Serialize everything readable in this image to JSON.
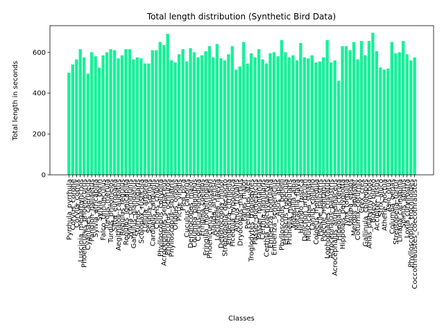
{
  "chart_data": {
    "type": "bar",
    "title": "Total length distribution (Synthetic Bird Data)",
    "x_label": "Classes",
    "y_label": "Total length in seconds",
    "color": "#19f09a",
    "categories": [
      "Pyrrhula_pyrrhula",
      "Corvus_corone",
      "Corvus_cornix",
      "Luscinia_megarhynchos",
      "Phoenicurus_phoenicurus",
      "Cyanistes_caeruleus",
      "Pandion_haliaetus",
      "Sylvia_atricapilla",
      "Sylvia_borin",
      "Falco_tinnunculus",
      "Turdus_merula",
      "Turdus_philomelos",
      "Sitta_europaea",
      "Aegithalos_caudatus",
      "Regulus_regulus",
      "Regulus_ignicapilla",
      "Sylvia_communis",
      "Garrulus_glandarius",
      "Sturnus_vulgaris",
      "Scolopax_rusticola",
      "Lullula_arborea",
      "Serinus_serinus",
      "Carduelis_carduelis",
      "Chloris_chloris",
      "Phylloscopus_collybita",
      "Acrocephalus_scirpaceus",
      "Phoenicurus_ochruros",
      "Phylloscopus_sibilatrix",
      "Oriolus_oriolus",
      "Picus_viridis",
      "Pica_pica",
      "Cuculus_canorus",
      "Dendrocopos_major",
      "Columba_palumbus",
      "Corvus_monedula",
      "Fringilla_coelebs",
      "Fringilla_montifringilla",
      "Phoenicurus_moussieri",
      "Alauda_arvensis",
      "Locustella_naevia",
      "Dendrocopos_minor",
      "Streptopelia_decaocto",
      "Emberiza_citrinella",
      "Ficedula_hypoleuca",
      "Anthus_trivialis",
      "Dryocopus_martius",
      "Parus_major",
      "Periparus_ater",
      "Troglodytes_troglodytes",
      "Passer_domesticus",
      "Passer_montanus",
      "Certhia_familiaris",
      "Certhia_brachydactyla",
      "Emberiza_hortulana",
      "Emberiza_schoeniclus",
      "Apus_apus",
      "Phylloscopus_bonelli",
      "Erithacus_rubecula",
      "Prunella_modularis",
      "Motacilla_alba",
      "Motacilla_flava",
      "Hirundo_rustica",
      "Delichon_urbicum",
      "Muscicapa_striata",
      "Lanius_collurio",
      "Coloeus_monedula",
      "Poecile_palustris",
      "Poecile_montanus",
      "Lophophanes_cristatus",
      "Acrocephalus_palustris",
      "Acrocephalus_arundinaceus",
      "Hippolais_icterina",
      "Hippolais_polyglotta",
      "Jynx_torquilla",
      "Upupa_epops",
      "Merops_apiaster",
      "Coturnix_coturnix",
      "Crex_crex",
      "Gallinula_chloropus",
      "Anas_platyrhynchos",
      "Buteo_buteo",
      "Accipiter_nisus",
      "Strix_aluco",
      "Athene_noctua",
      "Asio_otus",
      "Columba_oenas",
      "Streptopelia_turtur",
      "Linaria_cannabina",
      "Spinus_spinus",
      "Loxia_curvirostra",
      "Phylloscopus_trochiloides",
      "Coccothraustes_coccothraustes"
    ],
    "values": [
      500,
      540,
      565,
      615,
      575,
      495,
      600,
      580,
      525,
      585,
      600,
      615,
      610,
      570,
      585,
      615,
      615,
      565,
      575,
      570,
      545,
      545,
      610,
      610,
      650,
      635,
      690,
      560,
      550,
      590,
      615,
      555,
      620,
      600,
      575,
      585,
      605,
      630,
      575,
      640,
      570,
      560,
      590,
      630,
      515,
      530,
      650,
      545,
      595,
      575,
      615,
      565,
      545,
      595,
      600,
      580,
      660,
      600,
      575,
      585,
      560,
      645,
      575,
      570,
      585,
      550,
      555,
      575,
      660,
      550,
      560,
      460,
      630,
      630,
      610,
      650,
      565,
      655,
      585,
      655,
      695,
      605,
      525,
      515,
      520,
      650,
      595,
      600,
      655,
      590,
      560,
      575
    ],
    "ylim": [
      0,
      730
    ],
    "yticks": [
      0,
      200,
      400,
      600
    ]
  }
}
